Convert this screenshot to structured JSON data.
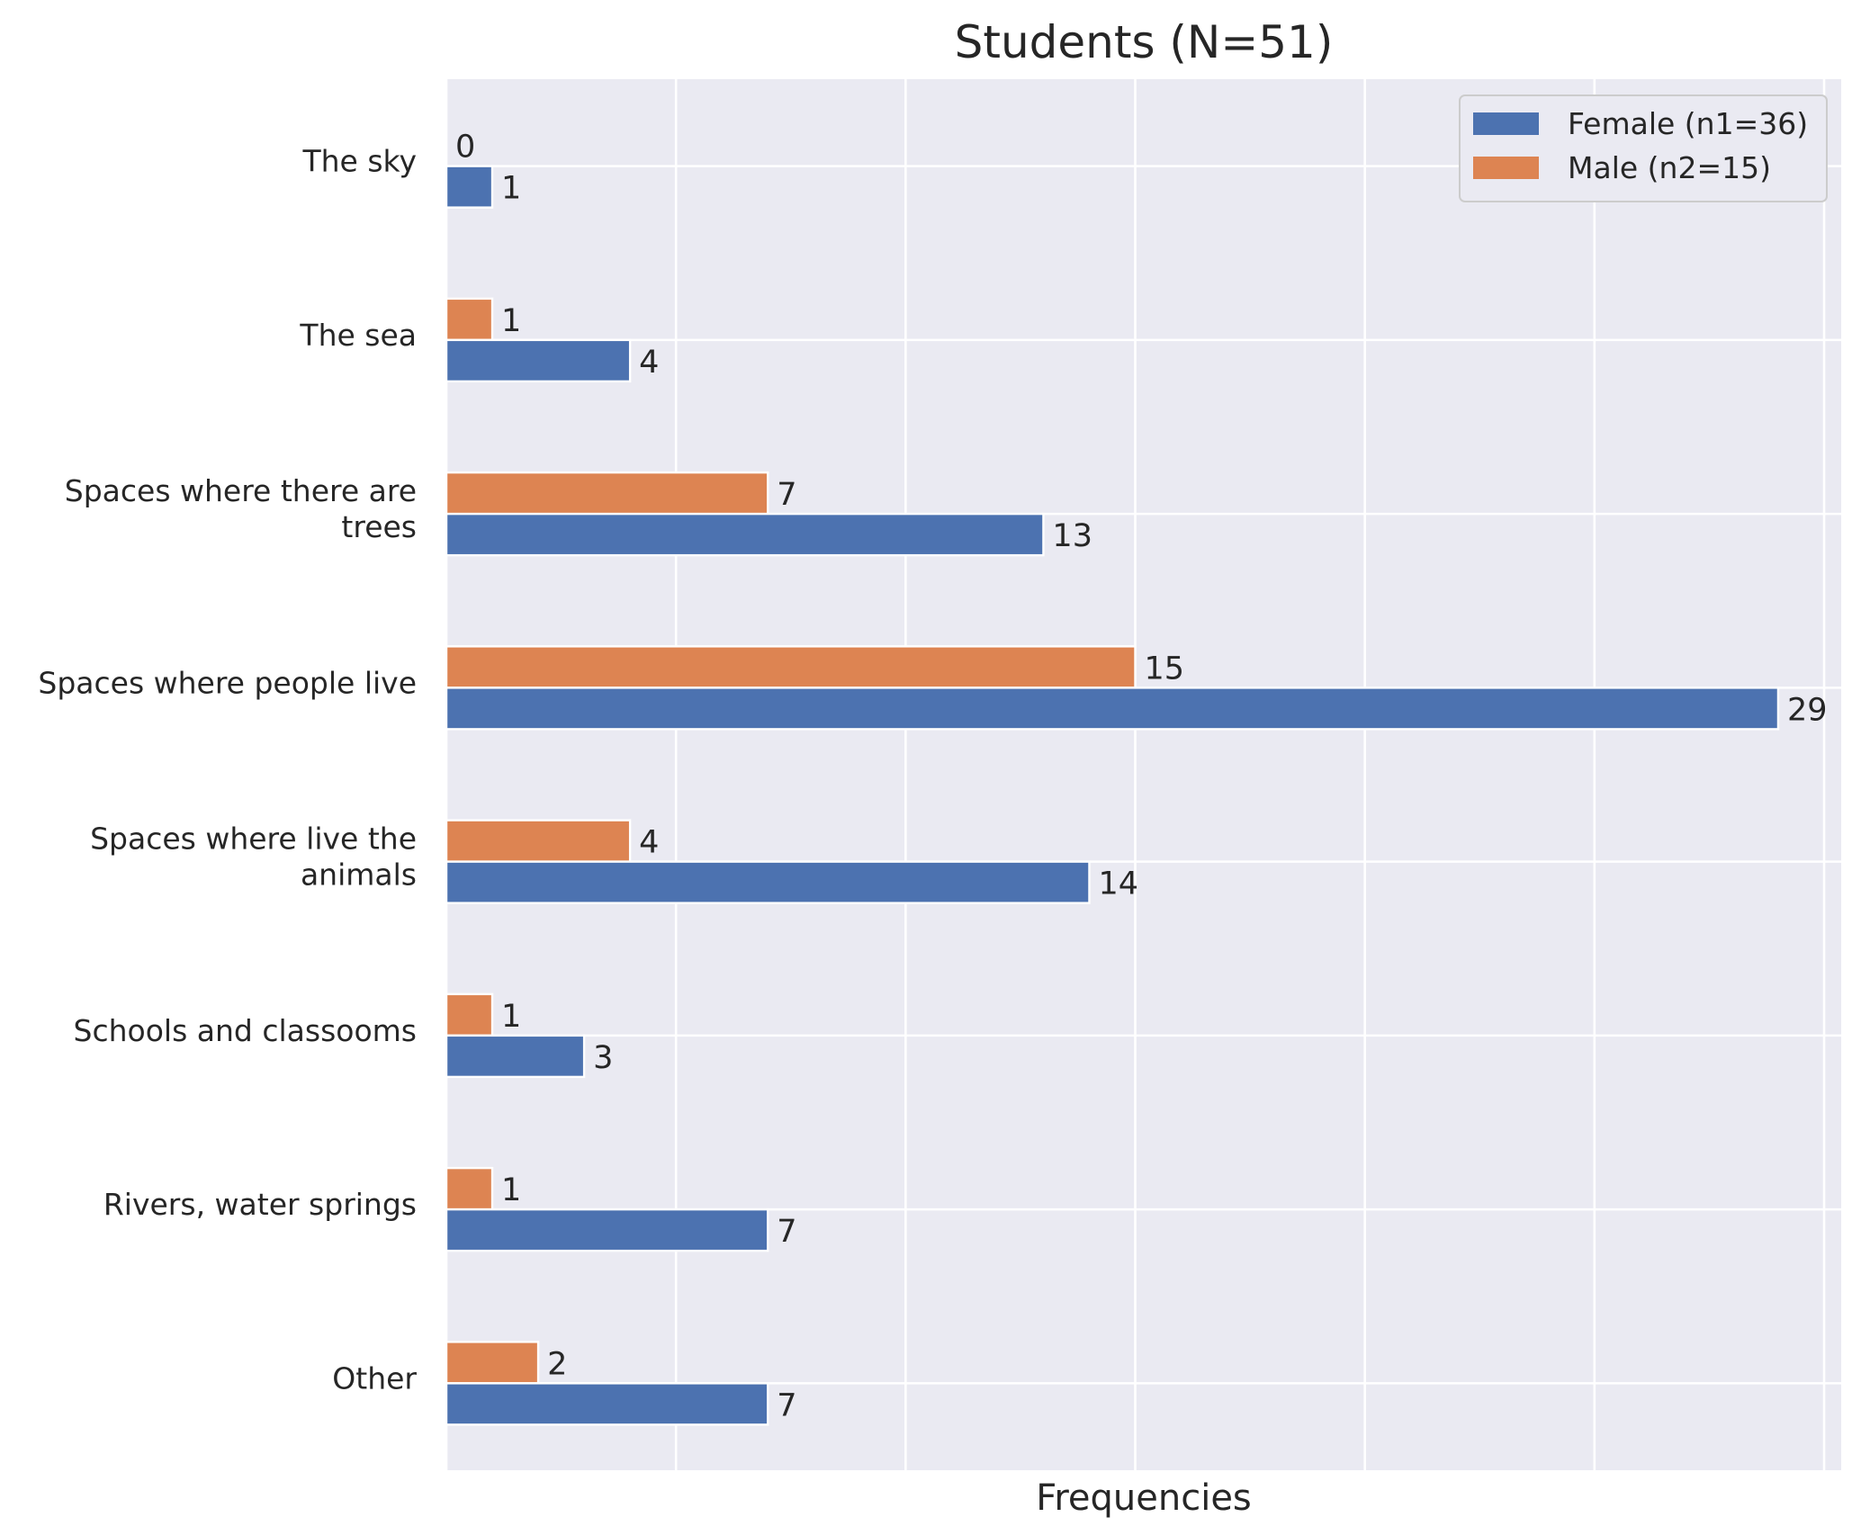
{
  "chart_data": {
    "type": "bar",
    "orientation": "horizontal",
    "title": "Students (N=51)",
    "xlabel": "Frequencies",
    "ylabel": "",
    "categories": [
      [
        "The sky"
      ],
      [
        "The sea"
      ],
      [
        "Spaces where there are",
        "trees"
      ],
      [
        "Spaces where people live"
      ],
      [
        "Spaces where live the",
        "animals"
      ],
      [
        "Schools and classooms"
      ],
      [
        "Rivers, water springs"
      ],
      [
        "Other"
      ]
    ],
    "series": [
      {
        "name": "Female (n1=36)",
        "color": "#4c72b0",
        "values": [
          1,
          4,
          13,
          29,
          14,
          3,
          7,
          7
        ]
      },
      {
        "name": "Male (n2=15)",
        "color": "#dd8452",
        "values": [
          0,
          1,
          7,
          15,
          4,
          1,
          1,
          2
        ]
      }
    ],
    "xlim": [
      0,
      30
    ],
    "x_tick_step": 5,
    "x_tick_labels_visible": false,
    "grid": true,
    "legend_position": "top-right",
    "background_color": "#eaeaf2"
  }
}
